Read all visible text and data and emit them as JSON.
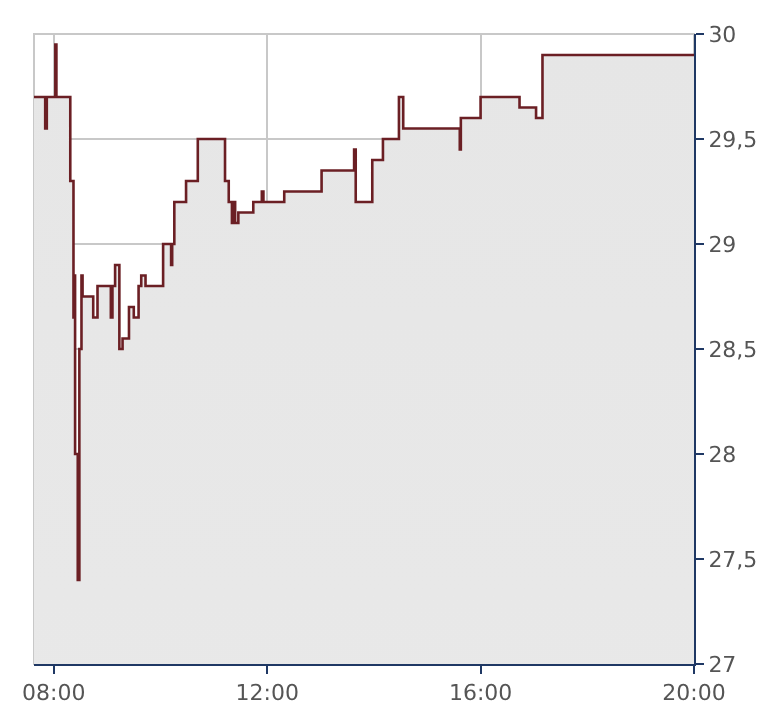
{
  "chart_data": {
    "type": "area",
    "x": [
      7.63,
      7.84,
      7.84,
      7.87,
      7.87,
      8.03,
      8.03,
      8.05,
      8.05,
      8.31,
      8.31,
      8.37,
      8.37,
      8.39,
      8.39,
      8.4,
      8.4,
      8.45,
      8.45,
      8.48,
      8.48,
      8.52,
      8.52,
      8.54,
      8.54,
      8.74,
      8.74,
      8.82,
      8.82,
      9.07,
      9.07,
      9.1,
      9.1,
      9.15,
      9.15,
      9.23,
      9.23,
      9.29,
      9.29,
      9.41,
      9.41,
      9.5,
      9.5,
      9.59,
      9.59,
      9.64,
      9.64,
      9.72,
      9.72,
      10.05,
      10.05,
      10.2,
      10.2,
      10.22,
      10.22,
      10.26,
      10.26,
      10.48,
      10.48,
      10.7,
      10.7,
      11.21,
      11.21,
      11.28,
      11.28,
      11.34,
      11.34,
      11.37,
      11.37,
      11.4,
      11.4,
      11.46,
      11.46,
      11.74,
      11.74,
      11.9,
      11.9,
      11.93,
      11.93,
      12.32,
      12.32,
      13.02,
      13.02,
      13.63,
      13.63,
      13.66,
      13.66,
      13.97,
      13.97,
      14.17,
      14.17,
      14.47,
      14.47,
      14.55,
      14.55,
      15.61,
      15.61,
      15.63,
      15.63,
      16.0,
      16.0,
      16.73,
      16.73,
      17.04,
      17.04,
      17.16,
      17.16,
      20.0
    ],
    "series": [
      {
        "color": "#6b1f24",
        "values": [
          29.7,
          29.7,
          29.55,
          29.55,
          29.7,
          29.7,
          29.95,
          29.95,
          29.7,
          29.7,
          29.3,
          29.3,
          28.65,
          28.65,
          28.85,
          28.85,
          28.0,
          28.0,
          27.4,
          27.4,
          28.5,
          28.5,
          28.85,
          28.85,
          28.75,
          28.75,
          28.65,
          28.65,
          28.8,
          28.8,
          28.65,
          28.65,
          28.8,
          28.8,
          28.9,
          28.9,
          28.5,
          28.5,
          28.55,
          28.55,
          28.7,
          28.7,
          28.65,
          28.65,
          28.8,
          28.8,
          28.85,
          28.85,
          28.8,
          28.8,
          29.0,
          29.0,
          28.9,
          28.9,
          29.0,
          29.0,
          29.2,
          29.2,
          29.3,
          29.3,
          29.5,
          29.5,
          29.3,
          29.3,
          29.2,
          29.2,
          29.1,
          29.1,
          29.2,
          29.2,
          29.1,
          29.1,
          29.15,
          29.15,
          29.2,
          29.2,
          29.25,
          29.25,
          29.2,
          29.2,
          29.25,
          29.25,
          29.35,
          29.35,
          29.45,
          29.45,
          29.2,
          29.2,
          29.4,
          29.4,
          29.5,
          29.5,
          29.7,
          29.7,
          29.55,
          29.55,
          29.45,
          29.45,
          29.6,
          29.6,
          29.7,
          29.7,
          29.65,
          29.65,
          29.6,
          29.6,
          29.9,
          29.9
        ]
      }
    ],
    "xlim": [
      7.63,
      20
    ],
    "xticks": [
      {
        "value": 8,
        "label": "08:00"
      },
      {
        "value": 12,
        "label": "12:00"
      },
      {
        "value": 16,
        "label": "16:00"
      },
      {
        "value": 20,
        "label": "20:00"
      }
    ],
    "ylim": [
      27,
      30
    ],
    "yticks": [
      27,
      {
        "value": 27.5,
        "label": "27,5"
      },
      28,
      {
        "value": 28.5,
        "label": "28,5"
      },
      29,
      {
        "value": 29.5,
        "label": "29,5"
      },
      30
    ],
    "grid": true,
    "marker": "none",
    "line_style": "solid"
  }
}
